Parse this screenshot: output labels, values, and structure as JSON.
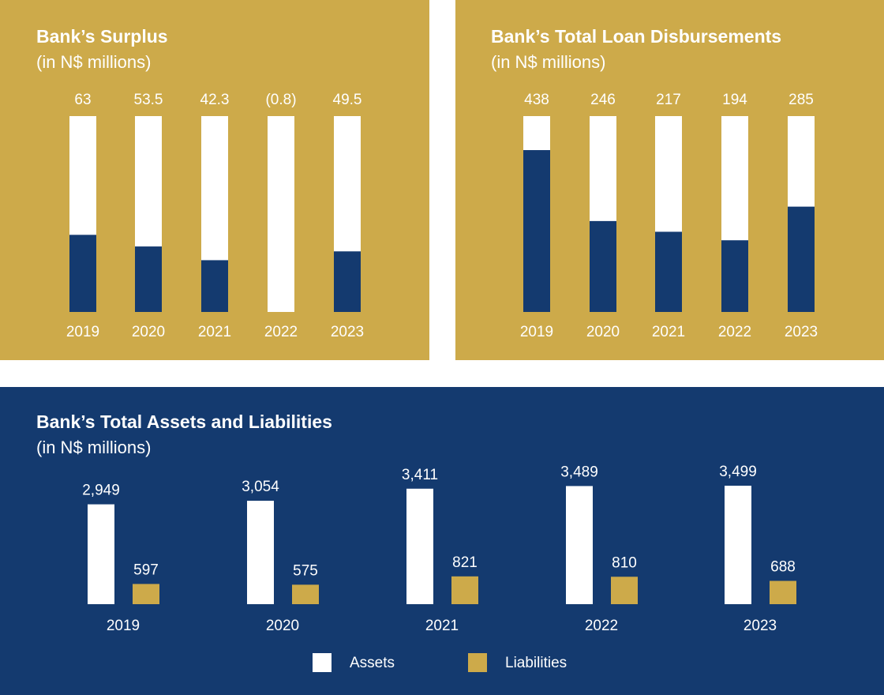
{
  "colors": {
    "gold": "#cdaa4a",
    "navy": "#143a6f",
    "white": "#ffffff"
  },
  "chart_data": [
    {
      "id": "surplus",
      "type": "bar",
      "title": "Bank’s Surplus",
      "subtitle": "(in N$ millions)",
      "categories": [
        "2019",
        "2020",
        "2021",
        "2022",
        "2023"
      ],
      "values": [
        63,
        53.5,
        42.3,
        -0.8,
        49.5
      ],
      "value_labels": [
        "63",
        "53.5",
        "42.3",
        "(0.8)",
        "49.5"
      ],
      "ylim": [
        0,
        160
      ],
      "background_bar": true,
      "grid": false
    },
    {
      "id": "loans",
      "type": "bar",
      "title": "Bank’s Total Loan Disbursements",
      "subtitle": "(in N$ millions)",
      "categories": [
        "2019",
        "2020",
        "2021",
        "2022",
        "2023"
      ],
      "values": [
        438,
        246,
        217,
        194,
        285
      ],
      "value_labels": [
        "438",
        "246",
        "217",
        "194",
        "285"
      ],
      "ylim": [
        0,
        530
      ],
      "background_bar": true,
      "grid": false
    },
    {
      "id": "assets",
      "type": "bar",
      "title": "Bank’s Total Assets and Liabilities",
      "subtitle": "(in N$ millions)",
      "categories": [
        "2019",
        "2020",
        "2021",
        "2022",
        "2023"
      ],
      "series": [
        {
          "name": "Assets",
          "values": [
            2949,
            3054,
            3411,
            3489,
            3499
          ],
          "labels": [
            "2,949",
            "3,054",
            "3,411",
            "3,489",
            "3,499"
          ]
        },
        {
          "name": "Liabilities",
          "values": [
            597,
            575,
            821,
            810,
            688
          ],
          "labels": [
            "597",
            "575",
            "821",
            "810",
            "688"
          ]
        }
      ],
      "legend": "bottom",
      "grid": false
    }
  ]
}
